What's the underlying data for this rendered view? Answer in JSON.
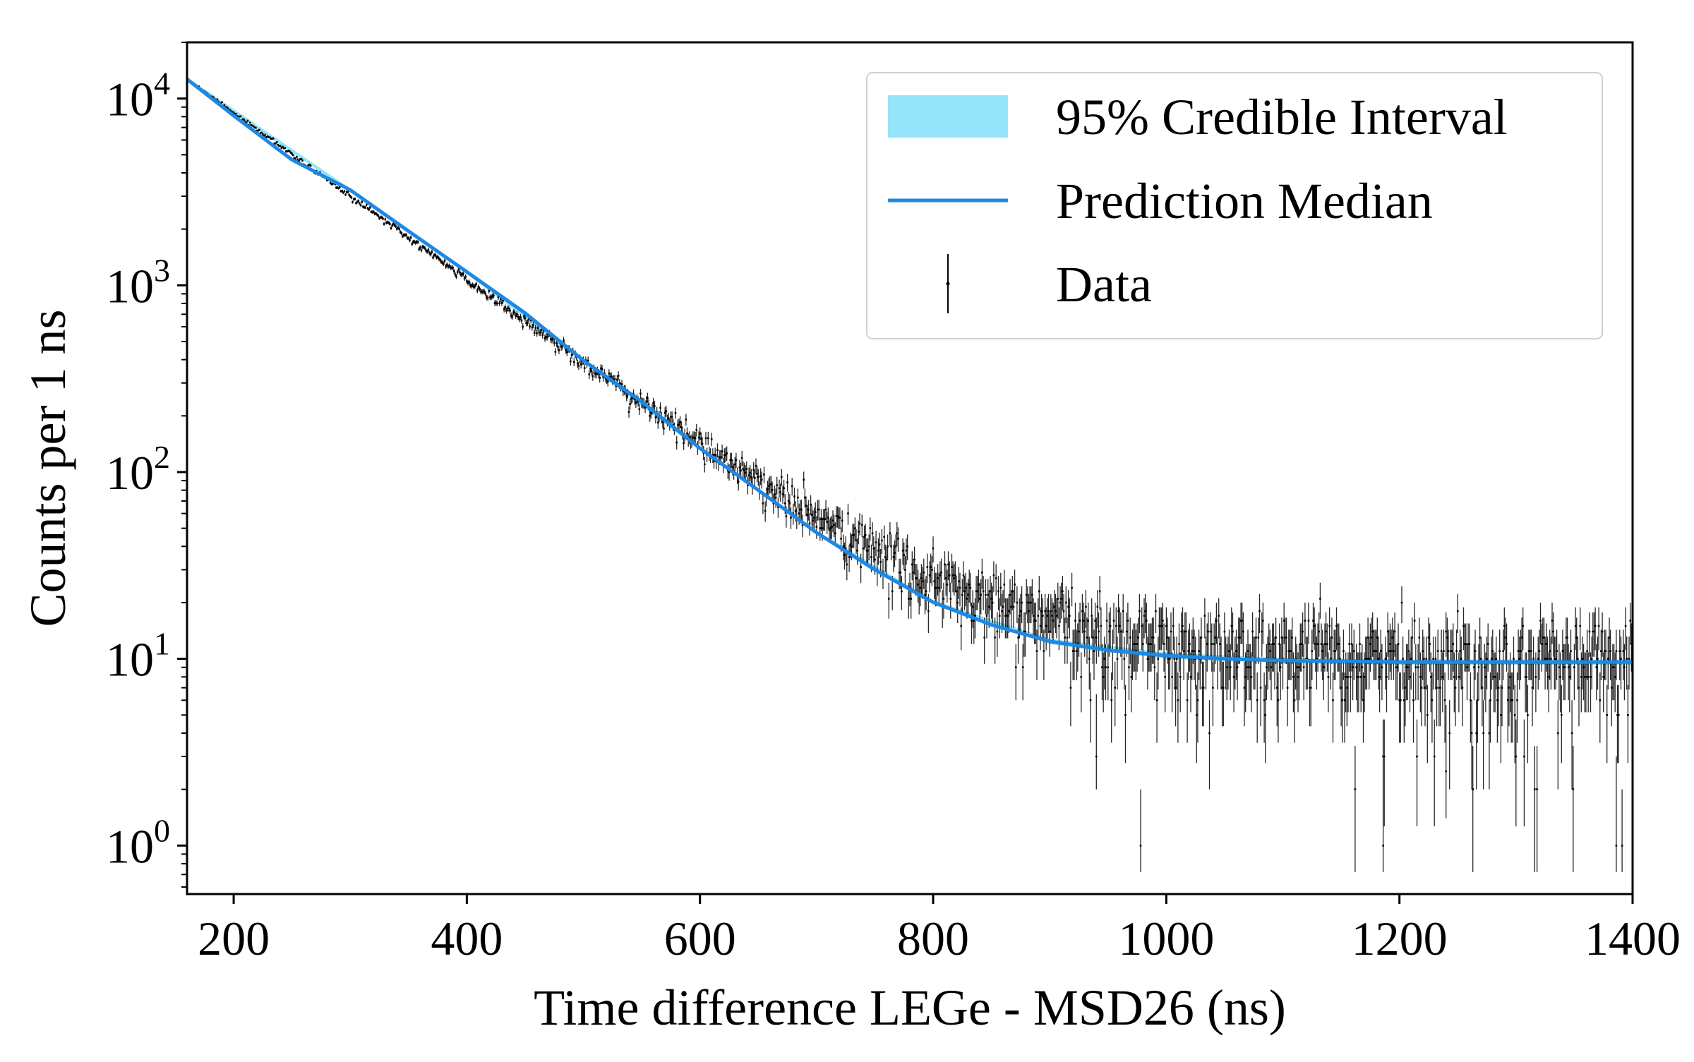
{
  "chart_data": {
    "type": "scatter",
    "title": "",
    "xlabel": "Time difference LEGe - MSD26 (ns)",
    "ylabel": "Counts per 1 ns",
    "xlim": [
      160,
      1400
    ],
    "ylim": [
      0.55,
      20000
    ],
    "yscale": "log",
    "grid": false,
    "legend_position": "top-right",
    "x_ticks": [
      200,
      400,
      600,
      800,
      1000,
      1200,
      1400
    ],
    "x_tick_labels": [
      "200",
      "400",
      "600",
      "800",
      "1000",
      "1200",
      "1400"
    ],
    "y_ticks": [
      1,
      10,
      100,
      1000,
      10000
    ],
    "y_tick_labels": [
      {
        "base": "10",
        "exp": "0"
      },
      {
        "base": "10",
        "exp": "1"
      },
      {
        "base": "10",
        "exp": "2"
      },
      {
        "base": "10",
        "exp": "3"
      },
      {
        "base": "10",
        "exp": "4"
      }
    ],
    "series": [
      {
        "name": "95% Credible Interval",
        "kind": "band",
        "color": "#95e4fa",
        "x": [
          160,
          300,
          400,
          500,
          600,
          700,
          800,
          900,
          1000,
          1100,
          1200,
          1300,
          1400
        ],
        "lower": [
          12400,
          3150,
          1150,
          388,
          131,
          46.5,
          19.6,
          12.0,
          10.0,
          9.5,
          9.3,
          9.3,
          9.3
        ],
        "upper": [
          13000,
          3300,
          1210,
          404,
          137,
          48.5,
          20.6,
          12.8,
          10.8,
          10.1,
          9.9,
          9.9,
          9.9
        ]
      },
      {
        "name": "Prediction Median",
        "kind": "line",
        "color": "#1e88e5",
        "x": [
          160,
          200,
          250,
          300,
          350,
          400,
          450,
          500,
          550,
          600,
          650,
          700,
          750,
          800,
          850,
          900,
          950,
          1000,
          1050,
          1100,
          1150,
          1200,
          1250,
          1300,
          1350,
          1400
        ],
        "y": [
          12700,
          8100,
          4700,
          3240,
          1950,
          1180,
          710,
          396,
          238,
          134,
          80,
          47.4,
          30,
          20.1,
          15.2,
          12.4,
          11.1,
          10.4,
          10.0,
          9.8,
          9.7,
          9.6,
          9.6,
          9.6,
          9.6,
          9.6
        ]
      },
      {
        "name": "Data",
        "kind": "errorbar",
        "color": "#000000",
        "x_range": [
          160,
          1400
        ],
        "bin_width": 1,
        "background": 9.6,
        "decay_amplitude": 12700,
        "decay_tau": 96.8,
        "notable_low_points": [
          {
            "x": 1186,
            "y": 1.0,
            "lower": 0.72
          },
          {
            "x": 1386,
            "y": 1.0,
            "lower": 0.72
          },
          {
            "x": 1240,
            "y": 2.5,
            "lower": 1.4
          },
          {
            "x": 940,
            "y": 3.0,
            "lower": 2.0
          }
        ]
      }
    ]
  }
}
